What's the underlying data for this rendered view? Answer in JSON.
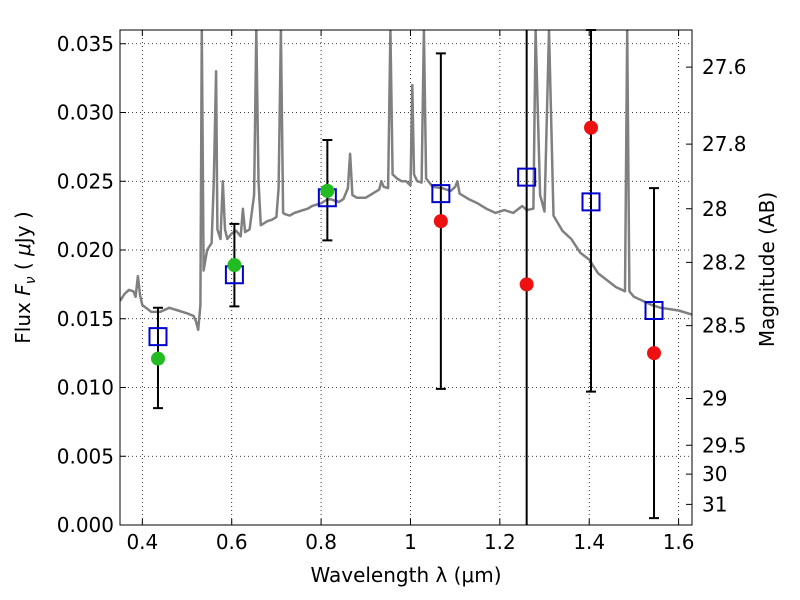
{
  "chart_data": {
    "type": "scatter",
    "xlabel": "Wavelength  λ (μm)",
    "ylabel": "Flux  F_ν  ( μJy )",
    "ylabel_parts": {
      "prefix": "Flux  ",
      "symbol": "F",
      "subscript": "ν",
      "unit_open": "  ( ",
      "unit_mu": "μ",
      "unit_rest": "Jy )"
    },
    "y2label": "Magnitude (AB)",
    "xlim": [
      0.35,
      1.63
    ],
    "ylim": [
      0.0,
      0.036
    ],
    "grid": true,
    "x_ticks": [
      0.4,
      0.6,
      0.8,
      1.0,
      1.2,
      1.4,
      1.6
    ],
    "x_tick_labels": [
      "0.4",
      "0.6",
      "0.8",
      "1",
      "1.2",
      "1.4",
      "1.6"
    ],
    "y_ticks": [
      0.0,
      0.005,
      0.01,
      0.015,
      0.02,
      0.025,
      0.03,
      0.035
    ],
    "y_tick_labels": [
      "0.000",
      "0.005",
      "0.010",
      "0.015",
      "0.020",
      "0.025",
      "0.030",
      "0.035"
    ],
    "y2_ticks": [
      {
        "label": "27.6",
        "flux": 0.0333
      },
      {
        "label": "27.8",
        "flux": 0.0277
      },
      {
        "label": "28",
        "flux": 0.023
      },
      {
        "label": "28.2",
        "flux": 0.0191
      },
      {
        "label": "28.5",
        "flux": 0.0145
      },
      {
        "label": "29",
        "flux": 0.0092
      },
      {
        "label": "29.5",
        "flux": 0.0058
      },
      {
        "label": "30",
        "flux": 0.0037
      },
      {
        "label": "31",
        "flux": 0.0015
      }
    ],
    "series": [
      {
        "marker": "square-open",
        "color": "#0000cc",
        "points": [
          [
            0.435,
            0.0137
          ],
          [
            0.606,
            0.0182
          ],
          [
            0.814,
            0.0238
          ],
          [
            1.068,
            0.0241
          ],
          [
            1.26,
            0.0253
          ],
          [
            1.404,
            0.0235
          ],
          [
            1.545,
            0.0156
          ]
        ]
      },
      {
        "marker": "circle",
        "color": "#22bb22",
        "points": [
          [
            0.435,
            0.0121
          ],
          [
            0.606,
            0.0189
          ],
          [
            0.814,
            0.0243
          ]
        ]
      },
      {
        "marker": "circle",
        "color": "#ee1111",
        "points": [
          [
            1.068,
            0.0221
          ],
          [
            1.26,
            0.0175
          ],
          [
            1.404,
            0.0289
          ],
          [
            1.545,
            0.0125
          ]
        ]
      }
    ],
    "error_bars": [
      {
        "x": 0.435,
        "low": 0.0085,
        "high": 0.0158,
        "caps": true
      },
      {
        "x": 0.606,
        "low": 0.0159,
        "high": 0.0219,
        "caps": true
      },
      {
        "x": 0.814,
        "low": 0.0207,
        "high": 0.028,
        "caps": true
      },
      {
        "x": 1.068,
        "low": 0.0099,
        "high": 0.0343,
        "caps": true
      },
      {
        "x": 1.26,
        "low": 0.0,
        "high": 0.036,
        "caps": false
      },
      {
        "x": 1.404,
        "low": 0.0097,
        "high": 0.036,
        "caps": true
      },
      {
        "x": 1.545,
        "low": 0.0005,
        "high": 0.0245,
        "caps": true
      }
    ],
    "spectrum": {
      "color": "#808080",
      "points": [
        [
          0.35,
          0.0163
        ],
        [
          0.36,
          0.0168
        ],
        [
          0.37,
          0.0171
        ],
        [
          0.38,
          0.017
        ],
        [
          0.385,
          0.0166
        ],
        [
          0.39,
          0.0181
        ],
        [
          0.395,
          0.0167
        ],
        [
          0.4,
          0.016
        ],
        [
          0.42,
          0.0155
        ],
        [
          0.44,
          0.0155
        ],
        [
          0.46,
          0.0158
        ],
        [
          0.48,
          0.0156
        ],
        [
          0.5,
          0.0154
        ],
        [
          0.515,
          0.0152
        ],
        [
          0.52,
          0.0148
        ],
        [
          0.525,
          0.0142
        ],
        [
          0.53,
          0.016
        ],
        [
          0.533,
          0.036
        ],
        [
          0.537,
          0.0185
        ],
        [
          0.545,
          0.02
        ],
        [
          0.555,
          0.0205
        ],
        [
          0.56,
          0.025
        ],
        [
          0.565,
          0.033
        ],
        [
          0.568,
          0.0215
        ],
        [
          0.575,
          0.0208
        ],
        [
          0.58,
          0.025
        ],
        [
          0.585,
          0.0215
        ],
        [
          0.59,
          0.0208
        ],
        [
          0.6,
          0.0212
        ],
        [
          0.61,
          0.0214
        ],
        [
          0.62,
          0.021
        ],
        [
          0.625,
          0.023
        ],
        [
          0.63,
          0.0213
        ],
        [
          0.64,
          0.0215
        ],
        [
          0.65,
          0.024
        ],
        [
          0.655,
          0.036
        ],
        [
          0.66,
          0.025
        ],
        [
          0.665,
          0.0218
        ],
        [
          0.67,
          0.0219
        ],
        [
          0.68,
          0.0221
        ],
        [
          0.69,
          0.0222
        ],
        [
          0.7,
          0.0224
        ],
        [
          0.705,
          0.0245
        ],
        [
          0.71,
          0.036
        ],
        [
          0.715,
          0.0227
        ],
        [
          0.72,
          0.0226
        ],
        [
          0.73,
          0.0225
        ],
        [
          0.74,
          0.0227
        ],
        [
          0.75,
          0.0228
        ],
        [
          0.76,
          0.0229
        ],
        [
          0.77,
          0.023
        ],
        [
          0.78,
          0.0232
        ],
        [
          0.79,
          0.0233
        ],
        [
          0.8,
          0.0234
        ],
        [
          0.81,
          0.0236
        ],
        [
          0.82,
          0.0237
        ],
        [
          0.83,
          0.0236
        ],
        [
          0.84,
          0.0235
        ],
        [
          0.85,
          0.0237
        ],
        [
          0.86,
          0.0245
        ],
        [
          0.865,
          0.027
        ],
        [
          0.87,
          0.024
        ],
        [
          0.88,
          0.0238
        ],
        [
          0.9,
          0.0238
        ],
        [
          0.91,
          0.024
        ],
        [
          0.92,
          0.0242
        ],
        [
          0.93,
          0.0244
        ],
        [
          0.935,
          0.025
        ],
        [
          0.94,
          0.0246
        ],
        [
          0.95,
          0.0245
        ],
        [
          0.955,
          0.036
        ],
        [
          0.96,
          0.0255
        ],
        [
          0.97,
          0.0252
        ],
        [
          0.98,
          0.025
        ],
        [
          0.99,
          0.025
        ],
        [
          1.0,
          0.0247
        ],
        [
          1.004,
          0.032
        ],
        [
          1.008,
          0.0255
        ],
        [
          1.015,
          0.025
        ],
        [
          1.025,
          0.0249
        ],
        [
          1.03,
          0.036
        ],
        [
          1.035,
          0.0252
        ],
        [
          1.05,
          0.0246
        ],
        [
          1.07,
          0.0245
        ],
        [
          1.09,
          0.0243
        ],
        [
          1.1,
          0.0246
        ],
        [
          1.105,
          0.025
        ],
        [
          1.11,
          0.0241
        ],
        [
          1.13,
          0.0237
        ],
        [
          1.15,
          0.0234
        ],
        [
          1.17,
          0.023
        ],
        [
          1.19,
          0.0227
        ],
        [
          1.21,
          0.0229
        ],
        [
          1.23,
          0.0227
        ],
        [
          1.25,
          0.0232
        ],
        [
          1.26,
          0.0229
        ],
        [
          1.275,
          0.023
        ],
        [
          1.28,
          0.036
        ],
        [
          1.29,
          0.024
        ],
        [
          1.3,
          0.0228
        ],
        [
          1.31,
          0.036
        ],
        [
          1.32,
          0.0225
        ],
        [
          1.34,
          0.0214
        ],
        [
          1.36,
          0.0208
        ],
        [
          1.38,
          0.0198
        ],
        [
          1.4,
          0.0193
        ],
        [
          1.42,
          0.0183
        ],
        [
          1.44,
          0.0178
        ],
        [
          1.46,
          0.0173
        ],
        [
          1.48,
          0.017
        ],
        [
          1.485,
          0.036
        ],
        [
          1.49,
          0.017
        ],
        [
          1.5,
          0.0166
        ],
        [
          1.52,
          0.0163
        ],
        [
          1.54,
          0.016
        ],
        [
          1.56,
          0.0158
        ],
        [
          1.58,
          0.0157
        ],
        [
          1.6,
          0.0156
        ],
        [
          1.63,
          0.0153
        ]
      ]
    }
  }
}
